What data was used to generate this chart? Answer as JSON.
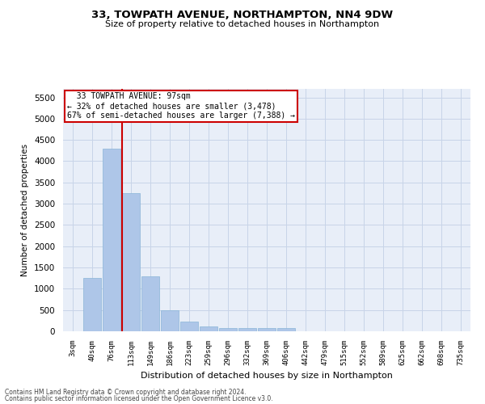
{
  "title": "33, TOWPATH AVENUE, NORTHAMPTON, NN4 9DW",
  "subtitle": "Size of property relative to detached houses in Northampton",
  "xlabel": "Distribution of detached houses by size in Northampton",
  "ylabel": "Number of detached properties",
  "categories": [
    "3sqm",
    "40sqm",
    "76sqm",
    "113sqm",
    "149sqm",
    "186sqm",
    "223sqm",
    "259sqm",
    "296sqm",
    "332sqm",
    "369sqm",
    "406sqm",
    "442sqm",
    "479sqm",
    "515sqm",
    "552sqm",
    "589sqm",
    "625sqm",
    "662sqm",
    "698sqm",
    "735sqm"
  ],
  "values": [
    0,
    1250,
    4300,
    3250,
    1300,
    500,
    220,
    120,
    80,
    80,
    75,
    75,
    0,
    0,
    0,
    0,
    0,
    0,
    0,
    0,
    0
  ],
  "bar_color": "#aec6e8",
  "bar_edge_color": "#8ab4d8",
  "grid_color": "#c8d4e8",
  "bg_color": "#e8eef8",
  "annotation_text": "  33 TOWPATH AVENUE: 97sqm\n← 32% of detached houses are smaller (3,478)\n67% of semi-detached houses are larger (7,388) →",
  "annotation_box_color": "#ffffff",
  "annotation_box_edge": "#cc0000",
  "ylim": [
    0,
    5700
  ],
  "yticks": [
    0,
    500,
    1000,
    1500,
    2000,
    2500,
    3000,
    3500,
    4000,
    4500,
    5000,
    5500
  ],
  "footer1": "Contains HM Land Registry data © Crown copyright and database right 2024.",
  "footer2": "Contains public sector information licensed under the Open Government Licence v3.0."
}
